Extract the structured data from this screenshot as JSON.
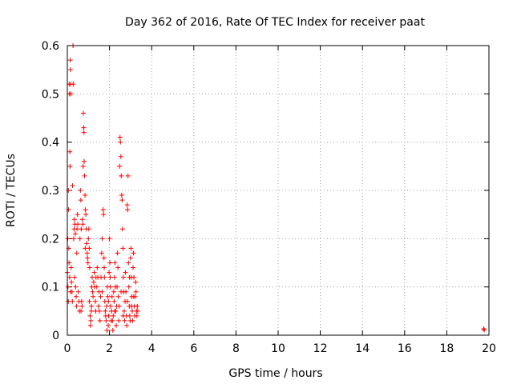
{
  "chart_data": {
    "type": "scatter",
    "title": "Day 362 of 2016, Rate Of TEC Index for receiver paat",
    "xlabel": "GPS time / hours",
    "ylabel": "ROTI / TECUs",
    "xlim": [
      0,
      20
    ],
    "ylim": [
      0,
      0.6
    ],
    "xticks": [
      0,
      2,
      4,
      6,
      8,
      10,
      12,
      14,
      16,
      18,
      20
    ],
    "yticks": [
      0,
      0.1,
      0.2,
      0.3,
      0.4,
      0.5,
      0.6
    ],
    "xtick_labels": [
      "0",
      "2",
      "4",
      "6",
      "8",
      "10",
      "12",
      "14",
      "16",
      "18",
      "20"
    ],
    "ytick_labels": [
      "0",
      "0.1",
      "0.2",
      "0.3",
      "0.4",
      "0.5",
      "0.6"
    ],
    "grid": true,
    "marker": "plus",
    "color": "#ff0000",
    "series": [
      {
        "name": "ROTI",
        "points": [
          [
            0.0,
            0.13
          ],
          [
            0.02,
            0.2
          ],
          [
            0.03,
            0.1
          ],
          [
            0.05,
            0.3
          ],
          [
            0.06,
            0.26
          ],
          [
            0.07,
            0.18
          ],
          [
            0.08,
            0.15
          ],
          [
            0.09,
            0.52
          ],
          [
            0.1,
            0.5
          ],
          [
            0.11,
            0.12
          ],
          [
            0.12,
            0.38
          ],
          [
            0.13,
            0.35
          ],
          [
            0.14,
            0.57
          ],
          [
            0.15,
            0.55
          ],
          [
            0.16,
            0.52
          ],
          [
            0.17,
            0.5
          ],
          [
            0.18,
            0.14
          ],
          [
            0.2,
            0.11
          ],
          [
            0.22,
            0.09
          ],
          [
            0.24,
            0.07
          ],
          [
            0.25,
            0.31
          ],
          [
            0.27,
            0.6
          ],
          [
            0.28,
            0.52
          ],
          [
            0.3,
            0.2
          ],
          [
            0.32,
            0.22
          ],
          [
            0.34,
            0.24
          ],
          [
            0.36,
            0.23
          ],
          [
            0.38,
            0.21
          ],
          [
            0.4,
            0.1
          ],
          [
            0.42,
            0.08
          ],
          [
            0.44,
            0.06
          ],
          [
            0.46,
            0.22
          ],
          [
            0.48,
            0.25
          ],
          [
            0.5,
            0.23
          ],
          [
            0.52,
            0.09
          ],
          [
            0.55,
            0.07
          ],
          [
            0.58,
            0.05
          ],
          [
            0.6,
            0.2
          ],
          [
            0.62,
            0.3
          ],
          [
            0.64,
            0.28
          ],
          [
            0.66,
            0.22
          ],
          [
            0.68,
            0.07
          ],
          [
            0.7,
            0.06
          ],
          [
            0.72,
            0.24
          ],
          [
            0.74,
            0.23
          ],
          [
            0.75,
            0.35
          ],
          [
            0.76,
            0.46
          ],
          [
            0.78,
            0.43
          ],
          [
            0.79,
            0.42
          ],
          [
            0.8,
            0.36
          ],
          [
            0.82,
            0.33
          ],
          [
            0.84,
            0.29
          ],
          [
            0.86,
            0.26
          ],
          [
            0.88,
            0.25
          ],
          [
            0.9,
            0.22
          ],
          [
            0.92,
            0.19
          ],
          [
            0.94,
            0.17
          ],
          [
            0.96,
            0.16
          ],
          [
            0.98,
            0.15
          ],
          [
            1.0,
            0.2
          ],
          [
            1.02,
            0.22
          ],
          [
            1.04,
            0.18
          ],
          [
            1.06,
            0.14
          ],
          [
            1.08,
            0.04
          ],
          [
            1.1,
            0.02
          ],
          [
            1.12,
            0.03
          ],
          [
            1.14,
            0.05
          ],
          [
            1.16,
            0.1
          ],
          [
            1.18,
            0.12
          ],
          [
            1.2,
            0.09
          ],
          [
            1.22,
            0.08
          ],
          [
            1.25,
            0.11
          ],
          [
            1.28,
            0.13
          ],
          [
            1.3,
            0.1
          ],
          [
            1.33,
            0.07
          ],
          [
            1.36,
            0.12
          ],
          [
            1.4,
            0.1
          ],
          [
            1.42,
            0.14
          ],
          [
            1.45,
            0.12
          ],
          [
            1.48,
            0.06
          ],
          [
            1.5,
            0.09
          ],
          [
            1.52,
            0.05
          ],
          [
            1.55,
            0.03
          ],
          [
            1.58,
            0.08
          ],
          [
            1.6,
            0.12
          ],
          [
            1.63,
            0.17
          ],
          [
            1.66,
            0.2
          ],
          [
            1.7,
            0.26
          ],
          [
            1.72,
            0.25
          ],
          [
            1.74,
            0.16
          ],
          [
            1.76,
            0.12
          ],
          [
            1.78,
            0.07
          ],
          [
            1.8,
            0.05
          ],
          [
            1.82,
            0.04
          ],
          [
            1.84,
            0.03
          ],
          [
            1.86,
            0.06
          ],
          [
            1.88,
            0.01
          ],
          [
            1.9,
            0.1
          ],
          [
            1.92,
            0.08
          ],
          [
            1.94,
            0.02
          ],
          [
            1.96,
            0.04
          ],
          [
            1.98,
            0.13
          ],
          [
            2.0,
            0.2
          ],
          [
            2.02,
            0.15
          ],
          [
            2.04,
            0.12
          ],
          [
            2.06,
            0.06
          ],
          [
            2.08,
            0.03
          ],
          [
            2.1,
            0.05
          ],
          [
            2.12,
            0.08
          ],
          [
            2.14,
            0.03
          ],
          [
            2.16,
            0.01
          ],
          [
            2.18,
            0.04
          ],
          [
            2.2,
            0.09
          ],
          [
            2.22,
            0.07
          ],
          [
            2.24,
            0.12
          ],
          [
            2.26,
            0.15
          ],
          [
            2.28,
            0.1
          ],
          [
            2.3,
            0.05
          ],
          [
            2.32,
            0.02
          ],
          [
            2.34,
            0.06
          ],
          [
            2.36,
            0.1
          ],
          [
            2.38,
            0.17
          ],
          [
            2.4,
            0.14
          ],
          [
            2.42,
            0.08
          ],
          [
            2.44,
            0.03
          ],
          [
            2.46,
            0.06
          ],
          [
            2.48,
            0.35
          ],
          [
            2.5,
            0.41
          ],
          [
            2.52,
            0.4
          ],
          [
            2.54,
            0.37
          ],
          [
            2.56,
            0.33
          ],
          [
            2.58,
            0.29
          ],
          [
            2.6,
            0.28
          ],
          [
            2.62,
            0.22
          ],
          [
            2.64,
            0.18
          ],
          [
            2.66,
            0.12
          ],
          [
            2.68,
            0.09
          ],
          [
            2.7,
            0.05
          ],
          [
            2.72,
            0.03
          ],
          [
            2.74,
            0.07
          ],
          [
            2.76,
            0.13
          ],
          [
            2.78,
            0.09
          ],
          [
            2.8,
            0.04
          ],
          [
            2.82,
            0.02
          ],
          [
            2.84,
            0.27
          ],
          [
            2.86,
            0.26
          ],
          [
            2.88,
            0.33
          ],
          [
            2.9,
            0.15
          ],
          [
            2.92,
            0.1
          ],
          [
            2.94,
            0.06
          ],
          [
            2.96,
            0.04
          ],
          [
            2.98,
            0.03
          ],
          [
            3.0,
            0.16
          ],
          [
            3.02,
            0.18
          ],
          [
            3.04,
            0.12
          ],
          [
            3.06,
            0.08
          ],
          [
            3.08,
            0.05
          ],
          [
            3.1,
            0.03
          ],
          [
            3.12,
            0.14
          ],
          [
            3.14,
            0.17
          ],
          [
            3.16,
            0.12
          ],
          [
            3.18,
            0.06
          ],
          [
            3.2,
            0.04
          ],
          [
            3.22,
            0.08
          ],
          [
            3.24,
            0.11
          ],
          [
            3.26,
            0.09
          ],
          [
            3.28,
            0.05
          ],
          [
            3.3,
            0.04
          ],
          [
            3.32,
            0.06
          ],
          [
            3.34,
            0.05
          ],
          [
            0.05,
            0.07
          ],
          [
            0.15,
            0.09
          ],
          [
            0.35,
            0.12
          ],
          [
            0.65,
            0.05
          ],
          [
            0.85,
            0.18
          ],
          [
            1.05,
            0.07
          ],
          [
            1.35,
            0.05
          ],
          [
            1.65,
            0.09
          ],
          [
            1.95,
            0.07
          ],
          [
            2.25,
            0.05
          ],
          [
            2.55,
            0.09
          ],
          [
            2.85,
            0.07
          ],
          [
            3.15,
            0.08
          ],
          [
            0.45,
            0.17
          ],
          [
            1.15,
            0.06
          ],
          [
            2.05,
            0.1
          ],
          [
            2.65,
            0.04
          ],
          [
            3.05,
            0.06
          ],
          [
            1.75,
            0.14
          ],
          [
            2.95,
            0.12
          ],
          [
            19.75,
            0.013
          ],
          [
            19.78,
            0.011
          ]
        ]
      }
    ]
  }
}
